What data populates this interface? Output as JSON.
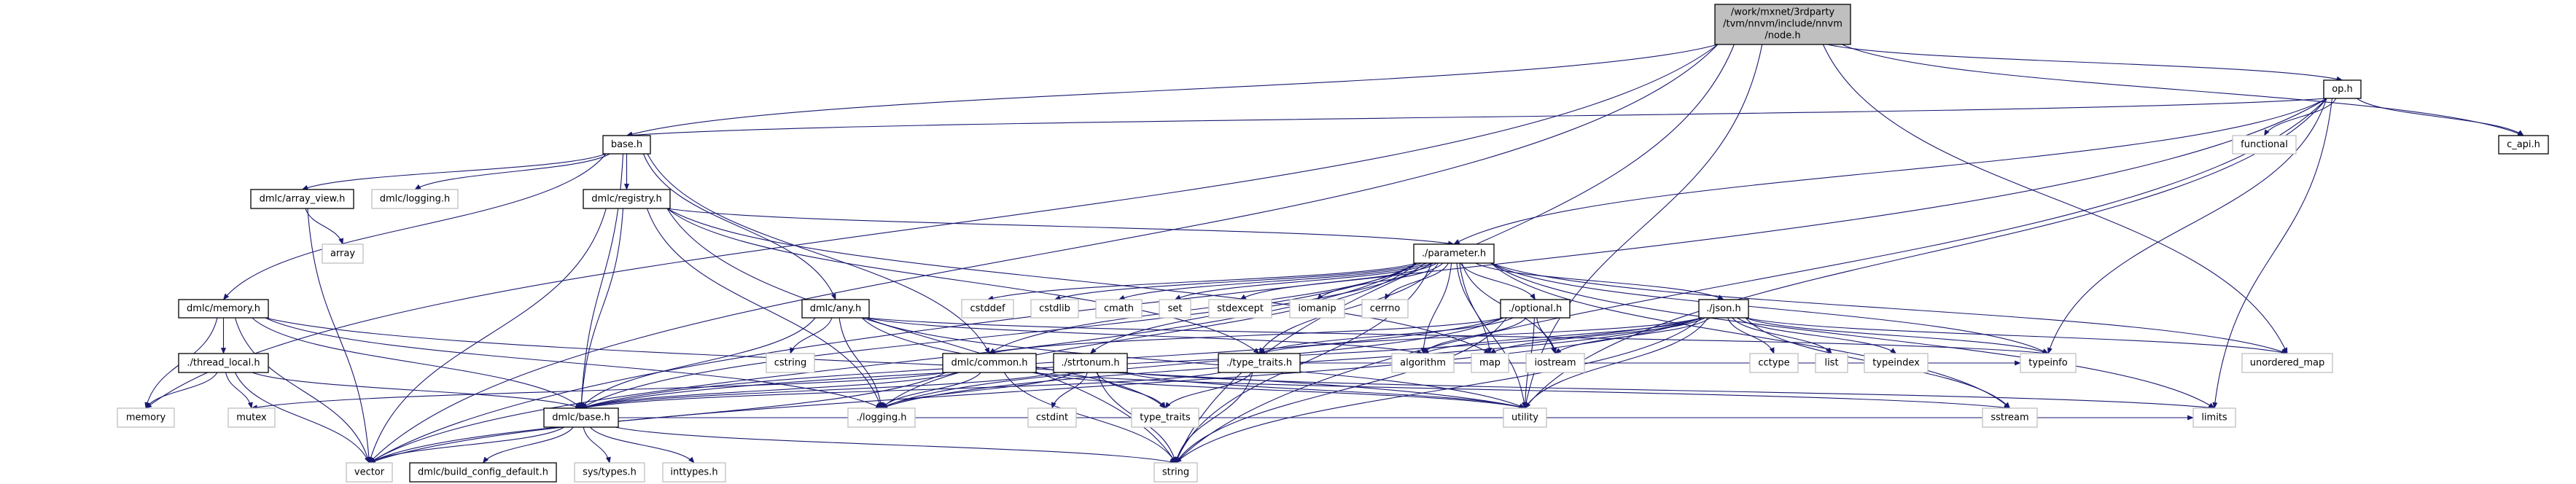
{
  "colors": {
    "edge": "#191970",
    "root_fill": "#bfbfbf",
    "external_border": "#bfbfbf",
    "found_border": "#000000"
  },
  "root": {
    "lines": [
      "/work/mxnet/3rdparty",
      "/tvm/nnvm/include/nnvm",
      "/node.h"
    ]
  },
  "nodes": [
    {
      "id": "base_h",
      "label": "base.h",
      "kind": "found"
    },
    {
      "id": "op_h",
      "label": "op.h",
      "kind": "found"
    },
    {
      "id": "c_api_h",
      "label": "c_api.h",
      "kind": "found"
    },
    {
      "id": "functional",
      "label": "functional",
      "kind": "external"
    },
    {
      "id": "array_view",
      "label": "dmlc/array_view.h",
      "kind": "found"
    },
    {
      "id": "dmlc_logging",
      "label": "dmlc/logging.h",
      "kind": "external"
    },
    {
      "id": "registry",
      "label": "dmlc/registry.h",
      "kind": "found"
    },
    {
      "id": "array",
      "label": "array",
      "kind": "external"
    },
    {
      "id": "parameter",
      "label": "./parameter.h",
      "kind": "found"
    },
    {
      "id": "memory_h",
      "label": "dmlc/memory.h",
      "kind": "found"
    },
    {
      "id": "any_h",
      "label": "dmlc/any.h",
      "kind": "found"
    },
    {
      "id": "cstddef",
      "label": "cstddef",
      "kind": "external"
    },
    {
      "id": "cstdlib",
      "label": "cstdlib",
      "kind": "external"
    },
    {
      "id": "cmath",
      "label": "cmath",
      "kind": "external"
    },
    {
      "id": "set",
      "label": "set",
      "kind": "external"
    },
    {
      "id": "stdexcept",
      "label": "stdexcept",
      "kind": "external"
    },
    {
      "id": "iomanip",
      "label": "iomanip",
      "kind": "external"
    },
    {
      "id": "cerrno",
      "label": "cerrno",
      "kind": "external"
    },
    {
      "id": "optional",
      "label": "./optional.h",
      "kind": "found"
    },
    {
      "id": "json",
      "label": "./json.h",
      "kind": "found"
    },
    {
      "id": "thread_local",
      "label": "./thread_local.h",
      "kind": "found"
    },
    {
      "id": "cstring",
      "label": "cstring",
      "kind": "external"
    },
    {
      "id": "common",
      "label": "dmlc/common.h",
      "kind": "found"
    },
    {
      "id": "strtonum",
      "label": "./strtonum.h",
      "kind": "found"
    },
    {
      "id": "type_traits_h",
      "label": "./type_traits.h",
      "kind": "found"
    },
    {
      "id": "algorithm",
      "label": "algorithm",
      "kind": "external"
    },
    {
      "id": "map",
      "label": "map",
      "kind": "external"
    },
    {
      "id": "iostream",
      "label": "iostream",
      "kind": "external"
    },
    {
      "id": "cctype",
      "label": "cctype",
      "kind": "external"
    },
    {
      "id": "list",
      "label": "list",
      "kind": "external"
    },
    {
      "id": "typeindex",
      "label": "typeindex",
      "kind": "external"
    },
    {
      "id": "typeinfo",
      "label": "typeinfo",
      "kind": "external"
    },
    {
      "id": "unordered_map",
      "label": "unordered_map",
      "kind": "external"
    },
    {
      "id": "memory",
      "label": "memory",
      "kind": "external"
    },
    {
      "id": "mutex",
      "label": "mutex",
      "kind": "external"
    },
    {
      "id": "dmlc_base",
      "label": "dmlc/base.h",
      "kind": "found"
    },
    {
      "id": "logging",
      "label": "./logging.h",
      "kind": "external"
    },
    {
      "id": "cstdint",
      "label": "cstdint",
      "kind": "external"
    },
    {
      "id": "type_traits",
      "label": "type_traits",
      "kind": "external"
    },
    {
      "id": "utility",
      "label": "utility",
      "kind": "external"
    },
    {
      "id": "sstream",
      "label": "sstream",
      "kind": "external"
    },
    {
      "id": "limits",
      "label": "limits",
      "kind": "external"
    },
    {
      "id": "vector",
      "label": "vector",
      "kind": "external"
    },
    {
      "id": "build_config",
      "label": "dmlc/build_config_default.h",
      "kind": "found"
    },
    {
      "id": "sys_types",
      "label": "sys/types.h",
      "kind": "external"
    },
    {
      "id": "inttypes",
      "label": "inttypes.h",
      "kind": "external"
    },
    {
      "id": "string",
      "label": "string",
      "kind": "external"
    }
  ],
  "edges": [
    [
      "root",
      "base_h"
    ],
    [
      "root",
      "op_h"
    ],
    [
      "root",
      "c_api_h"
    ],
    [
      "root",
      "memory"
    ],
    [
      "root",
      "vector"
    ],
    [
      "root",
      "string"
    ],
    [
      "root",
      "utility"
    ],
    [
      "root",
      "unordered_map"
    ],
    [
      "op_h",
      "base_h"
    ],
    [
      "op_h",
      "functional"
    ],
    [
      "op_h",
      "c_api_h"
    ],
    [
      "op_h",
      "parameter"
    ],
    [
      "op_h",
      "typeinfo"
    ],
    [
      "op_h",
      "limits"
    ],
    [
      "op_h",
      "utility"
    ],
    [
      "op_h",
      "string"
    ],
    [
      "op_h",
      "vector"
    ],
    [
      "base_h",
      "array_view"
    ],
    [
      "base_h",
      "dmlc_logging"
    ],
    [
      "base_h",
      "registry"
    ],
    [
      "base_h",
      "memory_h"
    ],
    [
      "base_h",
      "any_h"
    ],
    [
      "base_h",
      "dmlc_base"
    ],
    [
      "base_h",
      "common"
    ],
    [
      "array_view",
      "array"
    ],
    [
      "array_view",
      "vector"
    ],
    [
      "registry",
      "parameter"
    ],
    [
      "registry",
      "dmlc_base"
    ],
    [
      "registry",
      "vector"
    ],
    [
      "registry",
      "string"
    ],
    [
      "registry",
      "map"
    ],
    [
      "registry",
      "logging"
    ],
    [
      "registry",
      "type_traits_h"
    ],
    [
      "memory_h",
      "thread_local"
    ],
    [
      "memory_h",
      "memory"
    ],
    [
      "memory_h",
      "vector"
    ],
    [
      "memory_h",
      "dmlc_base"
    ],
    [
      "memory_h",
      "logging"
    ],
    [
      "memory_h",
      "utility"
    ],
    [
      "thread_local",
      "memory"
    ],
    [
      "thread_local",
      "mutex"
    ],
    [
      "thread_local",
      "vector"
    ],
    [
      "thread_local",
      "dmlc_base"
    ],
    [
      "any_h",
      "cstring"
    ],
    [
      "any_h",
      "dmlc_base"
    ],
    [
      "any_h",
      "logging"
    ],
    [
      "any_h",
      "typeinfo"
    ],
    [
      "any_h",
      "type_traits"
    ],
    [
      "any_h",
      "utility"
    ],
    [
      "any_h",
      "algorithm"
    ],
    [
      "parameter",
      "cstddef"
    ],
    [
      "parameter",
      "cstdlib"
    ],
    [
      "parameter",
      "cmath"
    ],
    [
      "parameter",
      "set"
    ],
    [
      "parameter",
      "stdexcept"
    ],
    [
      "parameter",
      "iomanip"
    ],
    [
      "parameter",
      "cerrno"
    ],
    [
      "parameter",
      "optional"
    ],
    [
      "parameter",
      "json"
    ],
    [
      "parameter",
      "dmlc_base"
    ],
    [
      "parameter",
      "logging"
    ],
    [
      "parameter",
      "type_traits_h"
    ],
    [
      "parameter",
      "strtonum"
    ],
    [
      "parameter",
      "common"
    ],
    [
      "parameter",
      "algorithm"
    ],
    [
      "parameter",
      "map"
    ],
    [
      "parameter",
      "iostream"
    ],
    [
      "parameter",
      "utility"
    ],
    [
      "parameter",
      "vector"
    ],
    [
      "parameter",
      "string"
    ],
    [
      "parameter",
      "sstream"
    ],
    [
      "parameter",
      "limits"
    ],
    [
      "parameter",
      "typeinfo"
    ],
    [
      "parameter",
      "unordered_map"
    ],
    [
      "optional",
      "iostream"
    ],
    [
      "optional",
      "string"
    ],
    [
      "optional",
      "utility"
    ],
    [
      "optional",
      "algorithm"
    ],
    [
      "optional",
      "dmlc_base"
    ],
    [
      "optional",
      "common"
    ],
    [
      "optional",
      "logging"
    ],
    [
      "optional",
      "type_traits_h"
    ],
    [
      "json",
      "cctype"
    ],
    [
      "json",
      "list"
    ],
    [
      "json",
      "typeindex"
    ],
    [
      "json",
      "typeinfo"
    ],
    [
      "json",
      "unordered_map"
    ],
    [
      "json",
      "map"
    ],
    [
      "json",
      "iostream"
    ],
    [
      "json",
      "algorithm"
    ],
    [
      "json",
      "utility"
    ],
    [
      "json",
      "vector"
    ],
    [
      "json",
      "string"
    ],
    [
      "json",
      "sstream"
    ],
    [
      "json",
      "dmlc_base"
    ],
    [
      "json",
      "logging"
    ],
    [
      "json",
      "type_traits_h"
    ],
    [
      "common",
      "dmlc_base"
    ],
    [
      "common",
      "logging"
    ],
    [
      "common",
      "vector"
    ],
    [
      "common",
      "string"
    ],
    [
      "common",
      "mutex"
    ],
    [
      "common",
      "utility"
    ],
    [
      "common",
      "sstream"
    ],
    [
      "strtonum",
      "cstdint"
    ],
    [
      "strtonum",
      "type_traits"
    ],
    [
      "strtonum",
      "string"
    ],
    [
      "strtonum",
      "logging"
    ],
    [
      "strtonum",
      "dmlc_base"
    ],
    [
      "strtonum",
      "limits"
    ],
    [
      "strtonum",
      "utility"
    ],
    [
      "type_traits_h",
      "type_traits"
    ],
    [
      "type_traits_h",
      "string"
    ],
    [
      "type_traits_h",
      "dmlc_base"
    ],
    [
      "type_traits_h",
      "typeinfo"
    ],
    [
      "dmlc_base",
      "vector"
    ],
    [
      "dmlc_base",
      "string"
    ],
    [
      "dmlc_base",
      "build_config"
    ],
    [
      "dmlc_base",
      "sys_types"
    ],
    [
      "dmlc_base",
      "inttypes"
    ],
    [
      "dmlc_base",
      "limits"
    ]
  ]
}
